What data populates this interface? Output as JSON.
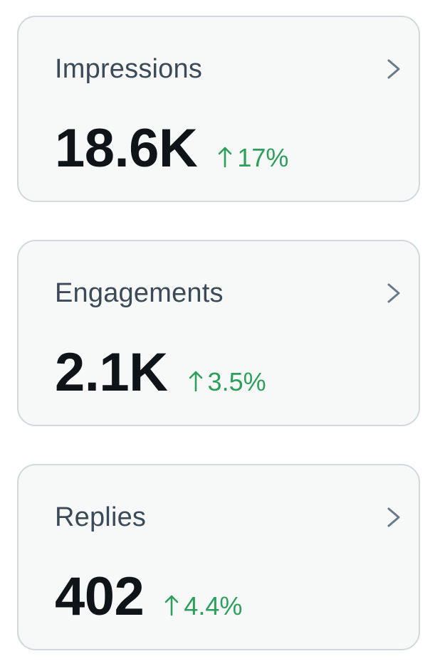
{
  "colors": {
    "card_background": "#f7f9f9",
    "card_border": "#cfd9de",
    "title": "#3c4a57",
    "value": "#0f1419",
    "positive_change": "#2e9e5b",
    "chevron": "#6b7a88"
  },
  "icons": {
    "chevron": "chevron-right-icon",
    "trend": "arrow-up-icon"
  },
  "metrics": [
    {
      "title": "Impressions",
      "value": "18.6K",
      "change": "17%"
    },
    {
      "title": "Engagements",
      "value": "2.1K",
      "change": "3.5%"
    },
    {
      "title": "Replies",
      "value": "402",
      "change": "4.4%"
    }
  ]
}
